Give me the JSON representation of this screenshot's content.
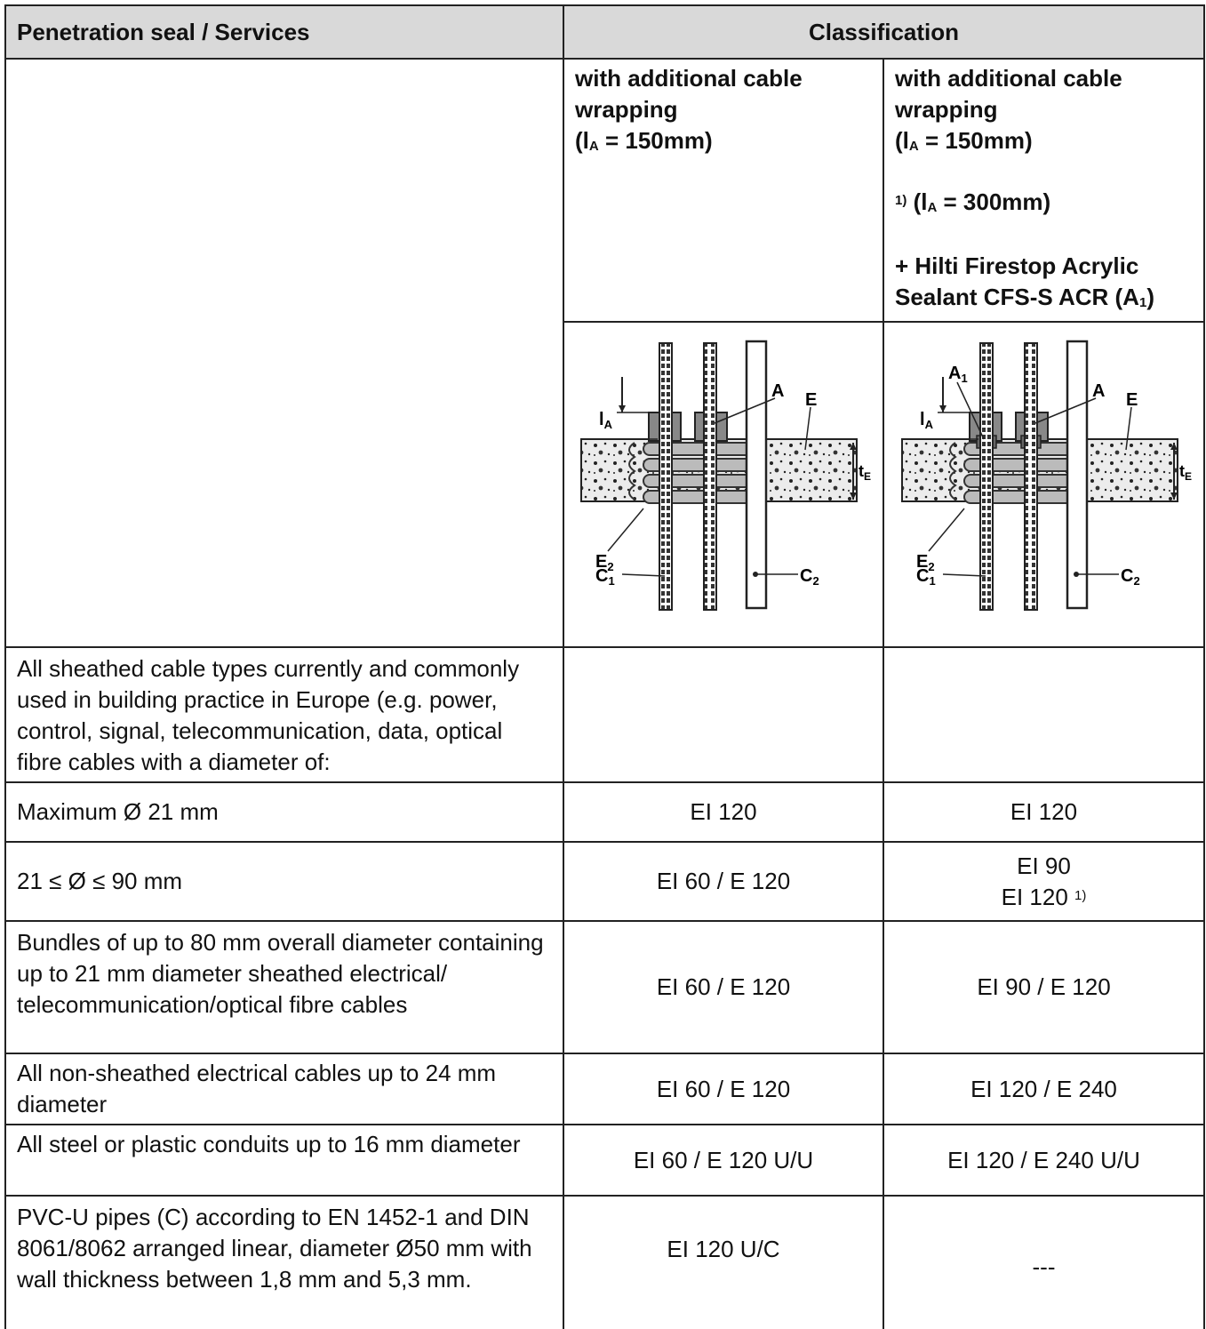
{
  "header": {
    "col1": "Penetration seal / Services",
    "col2": "Classification"
  },
  "subheader": {
    "col2": {
      "line1": "with additional cable wrapping",
      "la_open": "(l",
      "la_sub": "A",
      "la_value": " = 150mm)"
    },
    "col3": {
      "line1": "with additional cable wrapping",
      "la_open": "(l",
      "la_sub": "A",
      "la_value": " = 150mm)",
      "fn_mark": "1)",
      "la2_open": " (l",
      "la2_sub": "A",
      "la2_value": " = 300mm)",
      "sealant_text": "+ Hilti Firestop Acrylic Sealant CFS-S ACR (A",
      "sealant_sub": "1",
      "sealant_close": ")"
    }
  },
  "diagram_labels": {
    "la": "l",
    "la_sub": "A",
    "a": "A",
    "e": "E",
    "te": "t",
    "te_sub": "E",
    "e2": "E",
    "e2_sub": "2",
    "c1": "C",
    "c1_sub": "1",
    "c2": "C",
    "c2_sub": "2",
    "a1": "A",
    "a1_sub": "1"
  },
  "rows": [
    {
      "service": "All sheathed cable types currently and commonly used in building practice in Europe (e.g. power, control, signal, telecommunication, data, optical fibre cables with a diameter of:",
      "c2": "",
      "c3": ""
    },
    {
      "service": "Maximum Ø 21 mm",
      "c2": "EI 120",
      "c3": "EI 120"
    },
    {
      "service": "21 ≤ Ø ≤ 90 mm",
      "c2": "EI 60 / E 120",
      "c3_line1": "EI 90",
      "c3_line2": "EI 120 ",
      "c3_fn": "1)"
    },
    {
      "service": "Bundles of up to 80 mm overall diameter containing up to 21 mm diameter sheathed electrical/ telecommunication/optical fibre cables",
      "c2": "EI 60 / E 120",
      "c3": "EI 90 / E 120"
    },
    {
      "service": "All non-sheathed electrical cables up to 24 mm diameter",
      "c2": "EI 60 / E 120",
      "c3": "EI 120 / E 240"
    },
    {
      "service": "All steel or plastic conduits up to 16 mm diameter",
      "c2": "EI 60 / E 120 U/U",
      "c3": "EI 120 / E 240 U/U"
    },
    {
      "service": "PVC-U pipes (C) according to EN 1452-1 and DIN 8061/8062 arranged linear, diameter Ø50 mm with wall thickness between 1,8 mm and 5,3 mm.",
      "c2": "EI 120 U/C",
      "c3": "---"
    }
  ]
}
